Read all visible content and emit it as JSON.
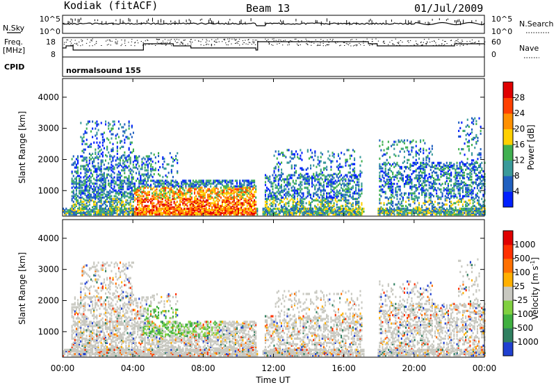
{
  "header": {
    "station": "Kodiak (fitACF)",
    "beam": "Beam 13",
    "date": "01/Jul/2009"
  },
  "sky_panel": {
    "left_label": "N.Sky",
    "right_label": "N.Search",
    "left_ticks": [
      "10^5",
      "10^0"
    ],
    "right_ticks": [
      "10^5",
      "10^0"
    ]
  },
  "freq_panel": {
    "left_label_1": "Freq.",
    "left_label_2": "[MHz]",
    "right_label": "Nave",
    "left_ticks": [
      "18",
      "8"
    ],
    "right_ticks": [
      "60",
      "0"
    ]
  },
  "cpid_panel": {
    "label": "CPID",
    "program": "normalsound 155"
  },
  "x_axis": {
    "label": "Time UT",
    "ticks": [
      "00:00",
      "04:00",
      "08:00",
      "12:00",
      "16:00",
      "20:00",
      "00:00"
    ]
  },
  "chart_data": [
    {
      "type": "heatmap",
      "name": "power",
      "ylabel": "Slant Range [km]",
      "y_ticks": [
        "1000",
        "2000",
        "3000",
        "4000"
      ],
      "ylim": [
        180,
        4600
      ],
      "x_range_hours": [
        0,
        24
      ],
      "colorbar": {
        "label": "Power [dB]",
        "ticks": [
          "4",
          "8",
          "12",
          "16",
          "20",
          "24",
          "28"
        ],
        "colors": [
          "#0020ff",
          "#2060c0",
          "#3a9a9a",
          "#40b050",
          "#ffd000",
          "#ff9000",
          "#ff4000",
          "#e00000"
        ]
      }
    },
    {
      "type": "heatmap",
      "name": "velocity",
      "ylabel": "Slant Range [km]",
      "y_ticks": [
        "1000",
        "2000",
        "3000",
        "4000"
      ],
      "ylim": [
        180,
        4600
      ],
      "x_range_hours": [
        0,
        24
      ],
      "colorbar": {
        "label": "Velocity [m s",
        "label_sup": "-1",
        "label_end": "]",
        "ticks": [
          "1000",
          "500",
          "100",
          "25",
          "-25",
          "-100",
          "-500",
          "-1000"
        ],
        "colors": [
          "#2040d0",
          "#308060",
          "#40b040",
          "#80d040",
          "#c8c8c0",
          "#ffb000",
          "#ff7000",
          "#ff3000",
          "#e00000"
        ]
      }
    }
  ]
}
